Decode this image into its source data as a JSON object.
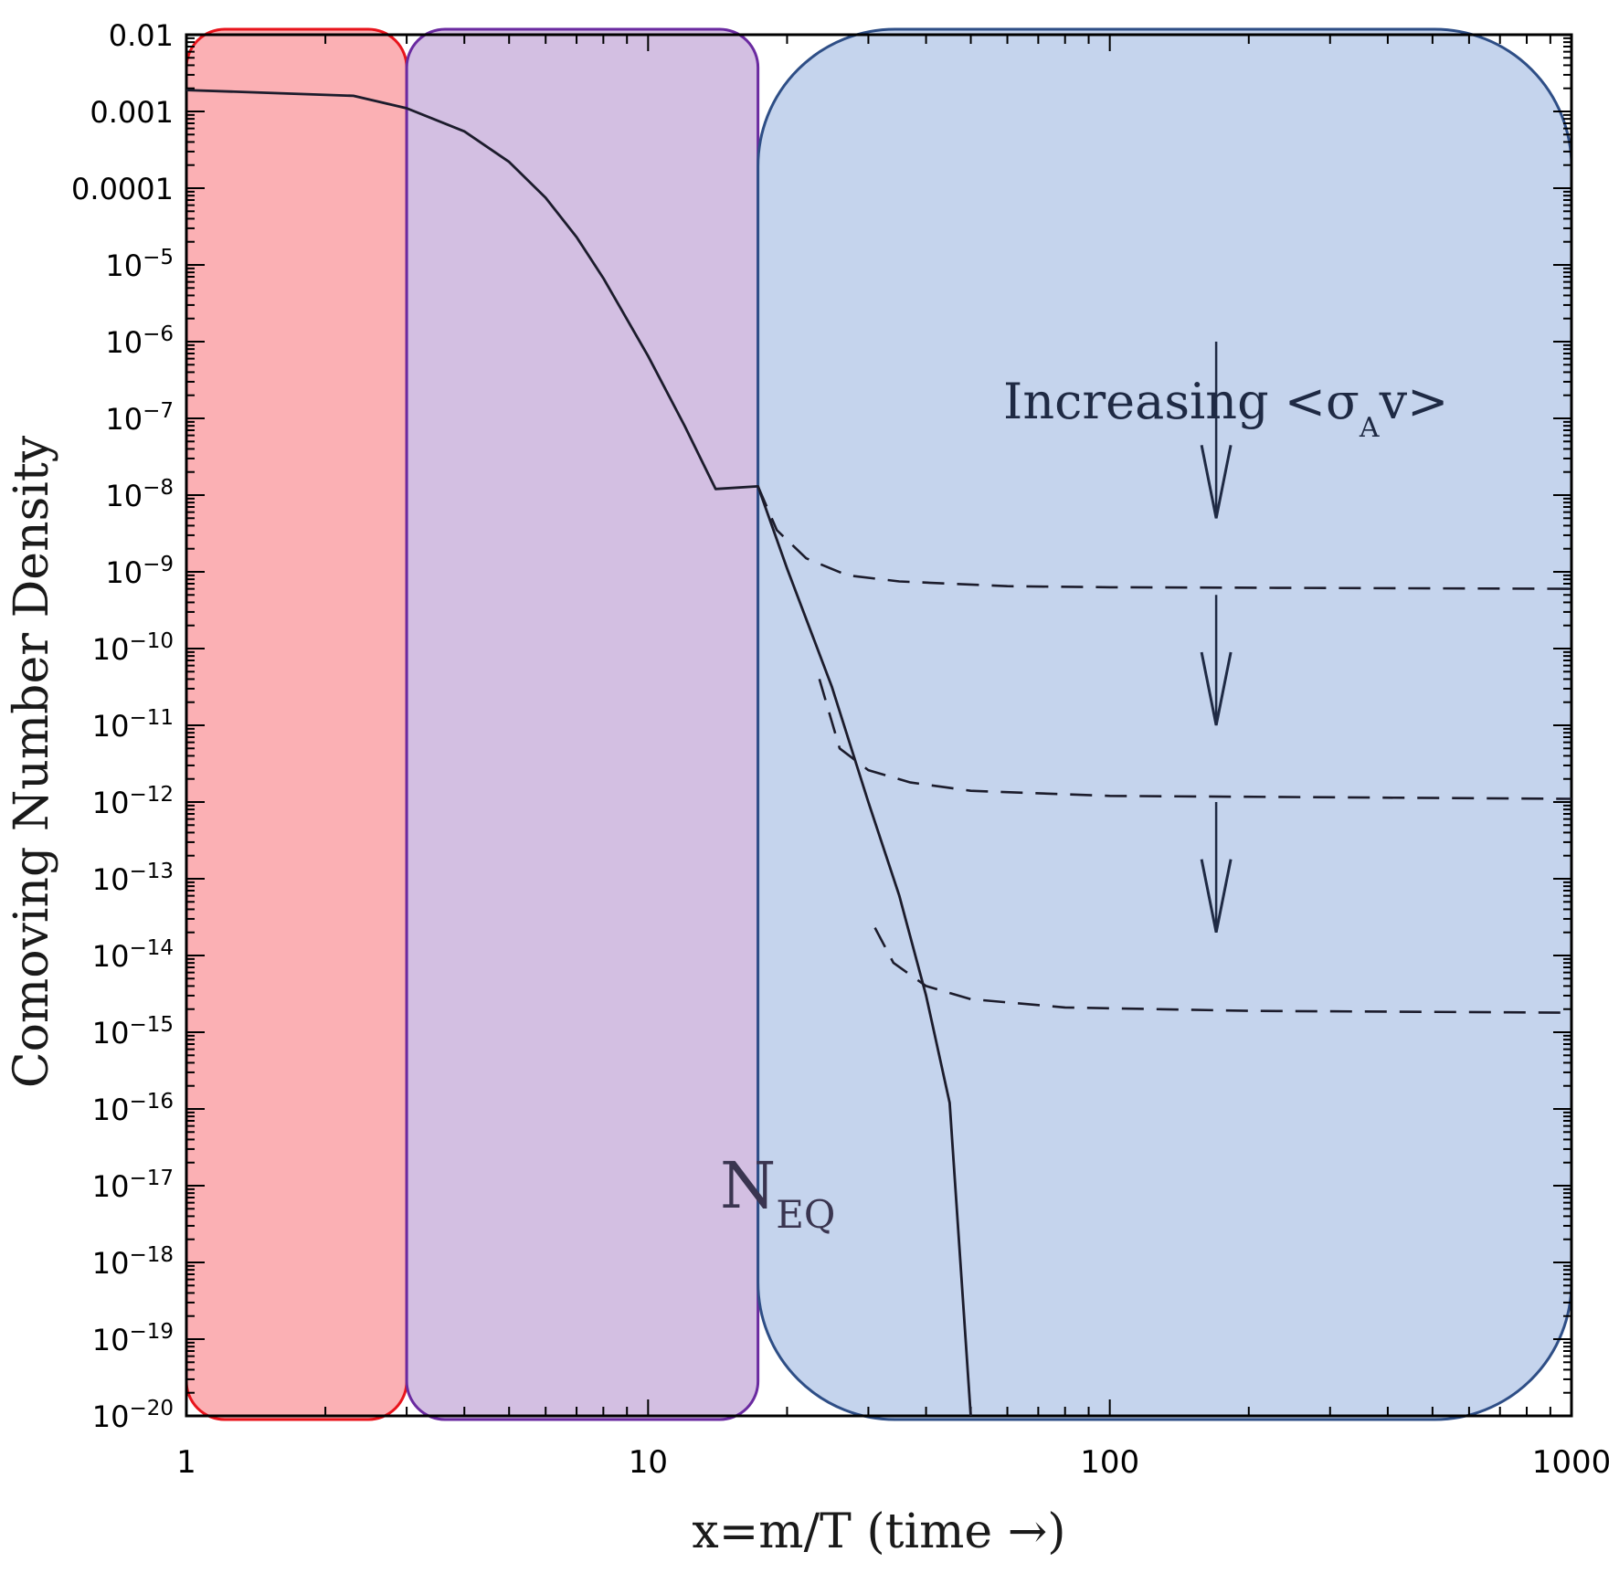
{
  "chart_data": {
    "type": "line",
    "title": "",
    "xlabel": "x=m/T (time →)",
    "ylabel": "Comoving Number Density",
    "xscale": "log",
    "yscale": "log",
    "xlim": [
      1,
      1000
    ],
    "ylim": [
      1e-20,
      0.01
    ],
    "x_ticks": [
      {
        "value": 1,
        "label": "1"
      },
      {
        "value": 10,
        "label": "10"
      },
      {
        "value": 100,
        "label": "100"
      },
      {
        "value": 1000,
        "label": "1000"
      }
    ],
    "y_ticks": [
      {
        "exp": -2,
        "base": "0.01",
        "sup": ""
      },
      {
        "exp": -3,
        "base": "0.001",
        "sup": ""
      },
      {
        "exp": -4,
        "base": "0.0001",
        "sup": ""
      },
      {
        "exp": -5,
        "base": "10",
        "sup": "−5"
      },
      {
        "exp": -6,
        "base": "10",
        "sup": "−6"
      },
      {
        "exp": -7,
        "base": "10",
        "sup": "−7"
      },
      {
        "exp": -8,
        "base": "10",
        "sup": "−8"
      },
      {
        "exp": -9,
        "base": "10",
        "sup": "−9"
      },
      {
        "exp": -10,
        "base": "10",
        "sup": "−10"
      },
      {
        "exp": -11,
        "base": "10",
        "sup": "−11"
      },
      {
        "exp": -12,
        "base": "10",
        "sup": "−12"
      },
      {
        "exp": -13,
        "base": "10",
        "sup": "−13"
      },
      {
        "exp": -14,
        "base": "10",
        "sup": "−14"
      },
      {
        "exp": -15,
        "base": "10",
        "sup": "−15"
      },
      {
        "exp": -16,
        "base": "10",
        "sup": "−16"
      },
      {
        "exp": -17,
        "base": "10",
        "sup": "−17"
      },
      {
        "exp": -18,
        "base": "10",
        "sup": "−18"
      },
      {
        "exp": -19,
        "base": "10",
        "sup": "−19"
      },
      {
        "exp": -20,
        "base": "10",
        "sup": "−20"
      }
    ],
    "regions": [
      {
        "name": "red-region",
        "x_range": [
          1,
          3
        ],
        "fill": "#fbb0b4",
        "stroke": "#e8141c"
      },
      {
        "name": "purple-region",
        "x_range": [
          3,
          17.3
        ],
        "fill": "#d3bfe2",
        "stroke": "#6a2aa0"
      },
      {
        "name": "blue-region",
        "x_range": [
          17.3,
          1000
        ],
        "fill": "#c5d4ed",
        "stroke": "#2e4e86"
      }
    ],
    "series": [
      {
        "name": "N_EQ",
        "style": "solid",
        "points": [
          [
            1,
            0.0019
          ],
          [
            1.5,
            0.00175
          ],
          [
            2.3,
            0.0016
          ],
          [
            3,
            0.0011
          ],
          [
            4,
            0.00055
          ],
          [
            5,
            0.00022
          ],
          [
            6,
            7.5e-05
          ],
          [
            7,
            2.3e-05
          ],
          [
            8,
            6.7e-06
          ],
          [
            10,
            6.5e-07
          ],
          [
            12,
            8e-08
          ],
          [
            14,
            1.2e-08
          ],
          [
            17.3,
            1.3e-08
          ],
          [
            20,
            1.1e-09
          ],
          [
            25,
            3.2e-11
          ],
          [
            30,
            1e-12
          ],
          [
            35,
            6e-14
          ],
          [
            40,
            3e-15
          ],
          [
            45,
            1.2e-16
          ],
          [
            50,
            1e-20
          ]
        ]
      },
      {
        "name": "freeze-out-1",
        "style": "dashed",
        "points": [
          [
            17.3,
            1.3e-08
          ],
          [
            19,
            3.5e-09
          ],
          [
            22,
            1.5e-09
          ],
          [
            27,
            9e-10
          ],
          [
            35,
            7.5e-10
          ],
          [
            60,
            6.5e-10
          ],
          [
            100,
            6.3e-10
          ],
          [
            1000,
            6e-10
          ]
        ]
      },
      {
        "name": "freeze-out-2",
        "style": "dashed",
        "points": [
          [
            23.5,
            4e-11
          ],
          [
            26,
            5e-12
          ],
          [
            30,
            2.6e-12
          ],
          [
            37,
            1.8e-12
          ],
          [
            50,
            1.4e-12
          ],
          [
            100,
            1.2e-12
          ],
          [
            1000,
            1.1e-12
          ]
        ]
      },
      {
        "name": "freeze-out-3",
        "style": "dashed",
        "points": [
          [
            31,
            2.3e-14
          ],
          [
            34,
            8e-15
          ],
          [
            40,
            4e-15
          ],
          [
            50,
            2.7e-15
          ],
          [
            80,
            2.1e-15
          ],
          [
            200,
            1.9e-15
          ],
          [
            1000,
            1.8e-15
          ]
        ]
      }
    ],
    "arrows": [
      {
        "x": 170,
        "y_from": 1e-06,
        "y_to": 5e-09
      },
      {
        "x": 170,
        "y_from": 5e-10,
        "y_to": 1e-11
      },
      {
        "x": 170,
        "y_from": 1e-12,
        "y_to": 2e-14
      }
    ],
    "annotations": {
      "increasing_main": "Increasing <σ",
      "increasing_sub": "A",
      "increasing_end": "v>",
      "neq_main": "N",
      "neq_sub": "EQ"
    }
  }
}
